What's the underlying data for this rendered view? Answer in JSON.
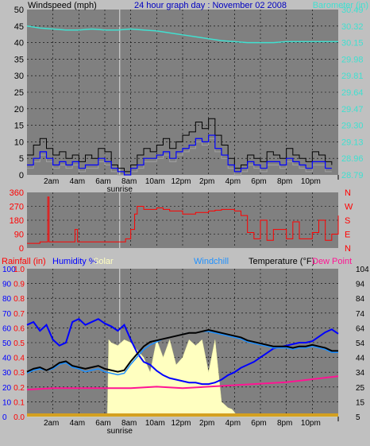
{
  "colors": {
    "background": "#c0c0c0",
    "plot_bg": "#808080",
    "wind_speed": "#000000",
    "wind_gust": "#0000ff",
    "wind_avg": "#a0a0a0",
    "barometer": "#40e0d0",
    "direction": "#ff0000",
    "rainfall": "#ff0000",
    "humidity": "#0000ff",
    "solar": "#ffffc0",
    "windchill": "#1e90ff",
    "temperature": "#000000",
    "dewpoint": "#ff1493",
    "title": "#0000c0"
  },
  "header": {
    "windspeed_label": "Windspeed (mph)",
    "title": "24 hour graph day : November 02 2008",
    "barometer_label": "Barometer (in)"
  },
  "bottom_header": {
    "rainfall": "Rainfall (in)",
    "humidity": "Humidity %",
    "solar": "Solar",
    "windchill": "Windchill",
    "temperature": "Temperature (°F)",
    "dewpoint": "Dew Point"
  },
  "time_labels": [
    "2am",
    "4am",
    "6am",
    "8am",
    "10am",
    "12pm",
    "2pm",
    "4pm",
    "6pm",
    "8pm",
    "10pm"
  ],
  "sunrise_label": "sunrise",
  "chart_data": [
    {
      "type": "line",
      "title": "24 hour graph day : November 02 2008",
      "ylabel": "Windspeed (mph)",
      "ylabel_right": "Barometer (in)",
      "x_range_hours": [
        0,
        24
      ],
      "ylim": [
        0,
        50
      ],
      "ylim_right": [
        28.79,
        30.49
      ],
      "yticks": [
        0,
        5,
        10,
        15,
        20,
        25,
        30,
        35,
        40,
        45,
        50
      ],
      "yticks_right": [
        "28.79",
        "28.96",
        "29.13",
        "29.30",
        "29.47",
        "29.64",
        "29.81",
        "29.98",
        "30.15",
        "30.32",
        "30.49"
      ],
      "grid": true,
      "series": [
        {
          "name": "Windspeed",
          "x": [
            0,
            0.5,
            1,
            1.5,
            2,
            2.5,
            3,
            3.5,
            4,
            4.5,
            5,
            5.5,
            6,
            6.5,
            7,
            7.5,
            8,
            8.5,
            9,
            9.5,
            10,
            10.5,
            11,
            11.5,
            12,
            12.5,
            13,
            13.5,
            14,
            14.5,
            15,
            15.5,
            16,
            16.5,
            17,
            17.5,
            18,
            18.5,
            19,
            19.5,
            20,
            20.5,
            21,
            21.5,
            22,
            22.5,
            23,
            23.5
          ],
          "values": [
            6,
            9,
            11,
            8,
            6,
            7,
            5,
            6,
            4,
            6,
            5,
            8,
            7,
            3,
            2,
            1,
            3,
            6,
            8,
            7,
            9,
            11,
            8,
            10,
            12,
            13,
            16,
            14,
            17,
            12,
            9,
            5,
            2,
            3,
            6,
            5,
            4,
            7,
            6,
            5,
            8,
            6,
            5,
            4,
            7,
            6,
            4,
            3
          ]
        },
        {
          "name": "Gust",
          "x": [
            0,
            0.5,
            1,
            1.5,
            2,
            2.5,
            3,
            3.5,
            4,
            4.5,
            5,
            5.5,
            6,
            6.5,
            7,
            7.5,
            8,
            8.5,
            9,
            9.5,
            10,
            10.5,
            11,
            11.5,
            12,
            12.5,
            13,
            13.5,
            14,
            14.5,
            15,
            15.5,
            16,
            16.5,
            17,
            17.5,
            18,
            18.5,
            19,
            19.5,
            20,
            20.5,
            21,
            21.5,
            22,
            22.5,
            23,
            23.5
          ],
          "values": [
            3,
            5,
            7,
            5,
            3,
            4,
            3,
            4,
            2,
            3,
            3,
            5,
            4,
            2,
            1,
            0,
            2,
            3,
            5,
            5,
            6,
            7,
            5,
            7,
            8,
            9,
            11,
            10,
            12,
            8,
            6,
            3,
            1,
            2,
            4,
            3,
            2,
            4,
            4,
            3,
            5,
            4,
            3,
            2,
            4,
            4,
            2,
            2
          ]
        },
        {
          "name": "Barometer",
          "axis": "right",
          "x": [
            0,
            1,
            2,
            3,
            4,
            5,
            6,
            7,
            8,
            9,
            10,
            11,
            12,
            13,
            14,
            15,
            16,
            17,
            18,
            19,
            20,
            21,
            22,
            23,
            24
          ],
          "values": [
            30.32,
            30.3,
            30.29,
            30.28,
            30.28,
            30.29,
            30.28,
            30.28,
            30.29,
            30.28,
            30.27,
            30.25,
            30.23,
            30.21,
            30.19,
            30.17,
            30.16,
            30.15,
            30.15,
            30.15,
            30.16,
            30.16,
            30.16,
            30.16,
            30.16
          ]
        }
      ]
    },
    {
      "type": "line",
      "ylabel": "Wind direction",
      "x_range_hours": [
        0,
        24
      ],
      "ylim": [
        0,
        360
      ],
      "yticks": [
        0,
        90,
        180,
        270,
        360
      ],
      "yticks_right": [
        "N",
        "E",
        "S",
        "W",
        "N"
      ],
      "grid": true,
      "series": [
        {
          "name": "Direction",
          "x": [
            0,
            1,
            1.5,
            1.6,
            1.7,
            2,
            3,
            3.5,
            3.7,
            3.9,
            4,
            5,
            6,
            7,
            7.4,
            7.6,
            8,
            8.3,
            8.5,
            9,
            10,
            10.5,
            11,
            12,
            13,
            14,
            14.5,
            15,
            16,
            16.5,
            17,
            17.5,
            18,
            18.5,
            19,
            20,
            20.5,
            21,
            22,
            22.5,
            23,
            23.5,
            24
          ],
          "values": [
            30,
            40,
            40,
            330,
            40,
            40,
            40,
            40,
            120,
            40,
            40,
            40,
            40,
            40,
            40,
            60,
            120,
            220,
            270,
            250,
            260,
            250,
            240,
            220,
            230,
            240,
            245,
            250,
            240,
            210,
            100,
            60,
            180,
            50,
            120,
            60,
            170,
            60,
            100,
            180,
            50,
            90,
            210
          ]
        }
      ]
    },
    {
      "type": "line",
      "ylabel": "Rainfall (in) / Humidity % / Solar",
      "ylabel_right": "Temperature (°F)",
      "x_range_hours": [
        0,
        24
      ],
      "ylim": [
        0,
        100
      ],
      "ylim_right": [
        5,
        104
      ],
      "yticks": [
        0,
        10,
        20,
        30,
        40,
        50,
        60,
        70,
        80,
        90,
        100
      ],
      "yticks_rain": [
        "0.0",
        "0.1",
        "0.2",
        "0.3",
        "0.4",
        "0.5",
        "0.6",
        "0.7",
        "0.8",
        "0.9",
        "1.0"
      ],
      "yticks_right": [
        5,
        15,
        25,
        34,
        44,
        54,
        64,
        74,
        84,
        94,
        104
      ],
      "grid": true,
      "series": [
        {
          "name": "Humidity",
          "x": [
            0,
            0.5,
            1,
            1.5,
            2,
            2.5,
            3,
            3.5,
            4,
            4.5,
            5,
            5.5,
            6,
            6.5,
            7,
            7.5,
            8,
            8.5,
            9,
            9.5,
            10,
            10.5,
            11,
            11.5,
            12,
            12.5,
            13,
            13.5,
            14,
            14.5,
            15,
            15.5,
            16,
            16.5,
            17,
            17.5,
            18,
            18.5,
            19,
            19.5,
            20,
            20.5,
            21,
            21.5,
            22,
            22.5,
            23,
            23.5,
            24
          ],
          "values": [
            62,
            64,
            58,
            62,
            52,
            48,
            50,
            64,
            66,
            62,
            64,
            66,
            63,
            61,
            58,
            62,
            52,
            43,
            37,
            35,
            31,
            28,
            26,
            25,
            24,
            23,
            23,
            22,
            22,
            23,
            25,
            28,
            30,
            33,
            35,
            37,
            40,
            43,
            46,
            47,
            48,
            49,
            50,
            50,
            51,
            54,
            57,
            59,
            56
          ]
        },
        {
          "name": "Solar",
          "x": [
            0,
            6.2,
            6.3,
            6.5,
            7,
            7.5,
            8,
            8.5,
            9,
            9.5,
            10,
            10.5,
            11,
            11.5,
            12,
            12.5,
            13,
            13.5,
            14,
            14.5,
            15,
            15.5,
            15.8,
            16,
            16.2,
            24
          ],
          "values": [
            0,
            0,
            52,
            50,
            48,
            52,
            50,
            45,
            40,
            30,
            52,
            40,
            52,
            35,
            40,
            52,
            48,
            52,
            30,
            52,
            10,
            6,
            5,
            3,
            0,
            0
          ]
        },
        {
          "name": "Windchill",
          "axis": "right",
          "x": [
            0,
            0.5,
            1,
            1.5,
            2,
            2.5,
            3,
            3.5,
            4,
            4.5,
            5,
            5.5,
            6,
            6.5,
            7,
            7.5,
            8,
            8.5,
            9,
            9.5,
            10,
            10.5,
            11,
            11.5,
            12,
            12.5,
            13,
            13.5,
            14,
            14.5,
            15,
            15.5,
            16,
            16.5,
            17,
            17.5,
            18,
            18.5,
            19,
            19.5,
            20,
            20.5,
            21,
            21.5,
            22,
            22.5,
            23,
            23.5,
            24
          ],
          "values": [
            34,
            36,
            37,
            36,
            37,
            40,
            41,
            38,
            37,
            35,
            36,
            37,
            35,
            34,
            33,
            34,
            40,
            45,
            50,
            53,
            55,
            57,
            58,
            59,
            60,
            61,
            61,
            62,
            62,
            61,
            60,
            59,
            58,
            57,
            55,
            54,
            53,
            52,
            51,
            51,
            51,
            50,
            51,
            51,
            52,
            51,
            50,
            48,
            48
          ]
        },
        {
          "name": "Temperature",
          "axis": "right",
          "x": [
            0,
            0.5,
            1,
            1.5,
            2,
            2.5,
            3,
            3.5,
            4,
            4.5,
            5,
            5.5,
            6,
            6.5,
            7,
            7.5,
            8,
            8.5,
            9,
            9.5,
            10,
            10.5,
            11,
            11.5,
            12,
            12.5,
            13,
            13.5,
            14,
            14.5,
            15,
            15.5,
            16,
            16.5,
            17,
            17.5,
            18,
            18.5,
            19,
            19.5,
            20,
            20.5,
            21,
            21.5,
            22,
            22.5,
            23,
            23.5,
            24
          ],
          "values": [
            35,
            37,
            38,
            36,
            38,
            41,
            42,
            39,
            38,
            37,
            38,
            39,
            37,
            36,
            35,
            36,
            42,
            47,
            52,
            55,
            56,
            57,
            58,
            59,
            60,
            61,
            61,
            62,
            63,
            62,
            61,
            60,
            59,
            58,
            56,
            55,
            54,
            53,
            52,
            52,
            52,
            51,
            52,
            52,
            53,
            52,
            51,
            49,
            49
          ]
        },
        {
          "name": "Dew Point",
          "axis": "right",
          "x": [
            0,
            2,
            4,
            6,
            8,
            10,
            12,
            14,
            16,
            18,
            20,
            22,
            24
          ],
          "values": [
            23,
            24,
            24,
            24,
            24,
            25,
            24,
            25,
            26,
            27,
            28,
            30,
            32
          ]
        },
        {
          "name": "Rainfall",
          "x": [
            0,
            24
          ],
          "values": [
            0.0,
            0.0
          ]
        }
      ]
    }
  ]
}
